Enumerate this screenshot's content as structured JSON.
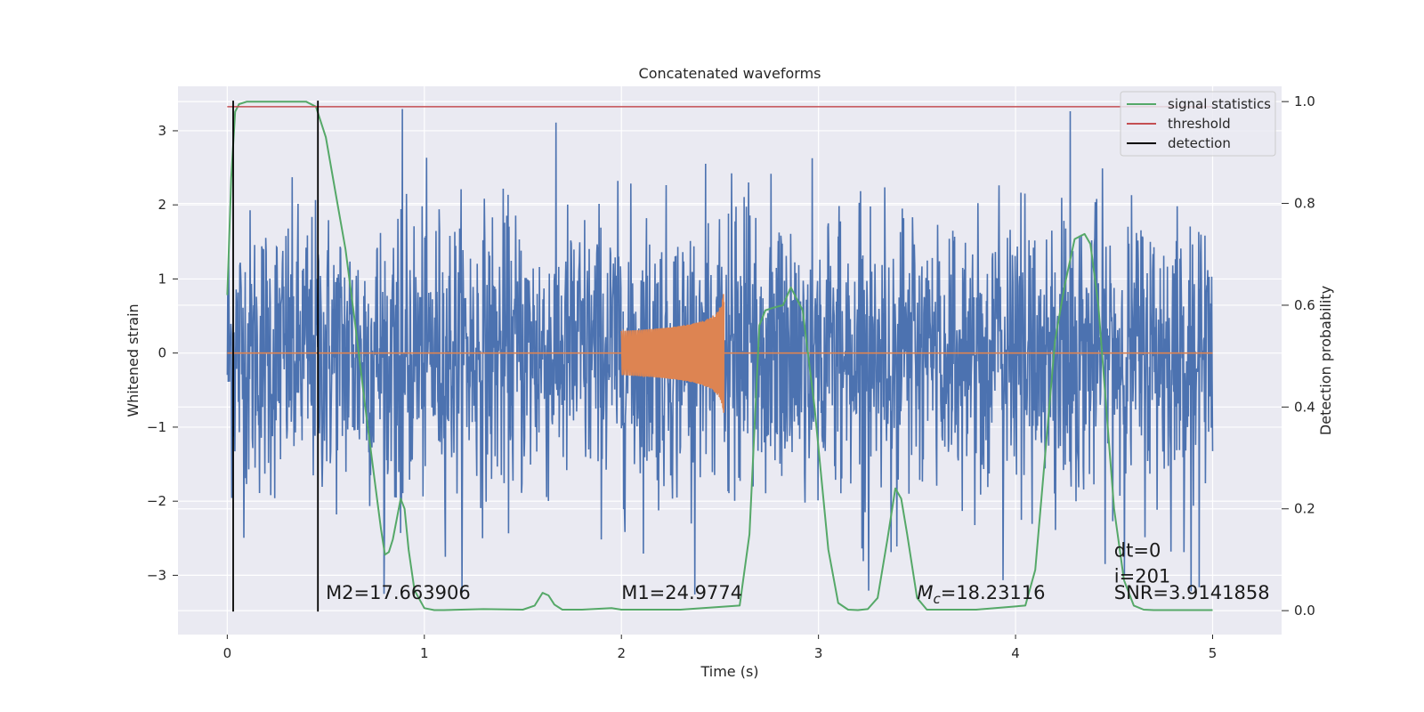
{
  "chart_data": {
    "type": "line",
    "title": "Concatenated waveforms",
    "xlabel": "Time (s)",
    "ylabel": "Whitened strain",
    "y2label": "Detection probability",
    "xlim": [
      -0.25,
      5.35
    ],
    "ylim": [
      -3.8,
      3.6
    ],
    "y2lim": [
      -0.047,
      1.03
    ],
    "x_ticks": [
      0,
      1,
      2,
      3,
      4,
      5
    ],
    "y_ticks": [
      -3,
      -2,
      -1,
      0,
      1,
      2,
      3
    ],
    "y2_ticks": [
      0.0,
      0.2,
      0.4,
      0.6,
      0.8,
      1.0
    ],
    "x_tick_labels": [
      "0",
      "1",
      "2",
      "3",
      "4",
      "5"
    ],
    "y_tick_labels": [
      "−3",
      "−2",
      "−1",
      "0",
      "1",
      "2",
      "3"
    ],
    "y2_tick_labels": [
      "0.0",
      "0.2",
      "0.4",
      "0.6",
      "0.8",
      "1.0"
    ],
    "grid": true,
    "legend_position": "top-right",
    "legend": [
      "signal statistics",
      "threshold",
      "detection"
    ],
    "colors": {
      "noise": "#4c72b0",
      "waveform": "#dd8452",
      "signal_statistics": "#55a868",
      "threshold": "#c44e52",
      "detection": "#000000",
      "plot_bg": "#eaeaf2",
      "grid": "#ffffff"
    },
    "series": [
      {
        "name": "",
        "axis": "left",
        "kind": "whitened noise",
        "x_range": [
          0,
          5
        ],
        "amplitude_envelope": 3.3
      },
      {
        "name": "",
        "axis": "left",
        "kind": "chirp",
        "x_range": [
          2.0,
          2.52
        ],
        "amplitude_end": 0.85
      },
      {
        "name": "signal statistics",
        "axis": "right",
        "x": [
          0.0,
          0.02,
          0.04,
          0.06,
          0.1,
          0.2,
          0.3,
          0.4,
          0.45,
          0.5,
          0.55,
          0.6,
          0.65,
          0.7,
          0.75,
          0.78,
          0.8,
          0.82,
          0.84,
          0.86,
          0.88,
          0.9,
          0.92,
          0.95,
          1.0,
          1.05,
          1.1,
          1.3,
          1.5,
          1.56,
          1.6,
          1.63,
          1.66,
          1.7,
          1.8,
          1.95,
          2.0,
          2.3,
          2.6,
          2.65,
          2.7,
          2.73,
          2.77,
          2.82,
          2.86,
          2.92,
          2.98,
          3.05,
          3.1,
          3.15,
          3.2,
          3.25,
          3.3,
          3.35,
          3.39,
          3.42,
          3.45,
          3.5,
          3.55,
          3.8,
          4.05,
          4.1,
          4.2,
          4.25,
          4.3,
          4.35,
          4.38,
          4.42,
          4.46,
          4.5,
          4.55,
          4.6,
          4.65,
          4.7,
          5.0
        ],
        "y": [
          0.62,
          0.85,
          0.98,
          0.995,
          1.0,
          1.0,
          1.0,
          1.0,
          0.99,
          0.93,
          0.82,
          0.71,
          0.56,
          0.4,
          0.25,
          0.16,
          0.11,
          0.115,
          0.14,
          0.18,
          0.22,
          0.2,
          0.12,
          0.04,
          0.005,
          0.001,
          0.001,
          0.003,
          0.002,
          0.01,
          0.035,
          0.03,
          0.012,
          0.002,
          0.002,
          0.005,
          0.002,
          0.002,
          0.01,
          0.15,
          0.56,
          0.59,
          0.595,
          0.6,
          0.635,
          0.59,
          0.4,
          0.12,
          0.015,
          0.002,
          0.001,
          0.003,
          0.025,
          0.14,
          0.24,
          0.22,
          0.15,
          0.025,
          0.002,
          0.002,
          0.01,
          0.08,
          0.53,
          0.64,
          0.73,
          0.74,
          0.72,
          0.6,
          0.4,
          0.2,
          0.06,
          0.01,
          0.002,
          0.001,
          0.001
        ]
      },
      {
        "name": "threshold",
        "axis": "right",
        "x": [
          0,
          5
        ],
        "y": [
          0.99,
          0.99
        ]
      },
      {
        "name": "detection",
        "axis": "right",
        "kind": "vertical lines",
        "x": [
          0.03,
          0.46
        ]
      }
    ],
    "annotations": [
      {
        "text": "M2=17.663906",
        "x": 0.5,
        "y": -3.32
      },
      {
        "text": "M1=24.9774",
        "x": 2.0,
        "y": -3.32
      },
      {
        "text_main": "M",
        "text_sub": "c",
        "text_rest": "=18.23116",
        "x": 3.5,
        "y": -3.32
      },
      {
        "text": "dt=0",
        "x": 4.5,
        "y": -2.75
      },
      {
        "text": "i=201",
        "x": 4.5,
        "y": -3.1
      },
      {
        "text": "SNR=3.9141858",
        "x": 4.5,
        "y": -3.32
      }
    ]
  }
}
